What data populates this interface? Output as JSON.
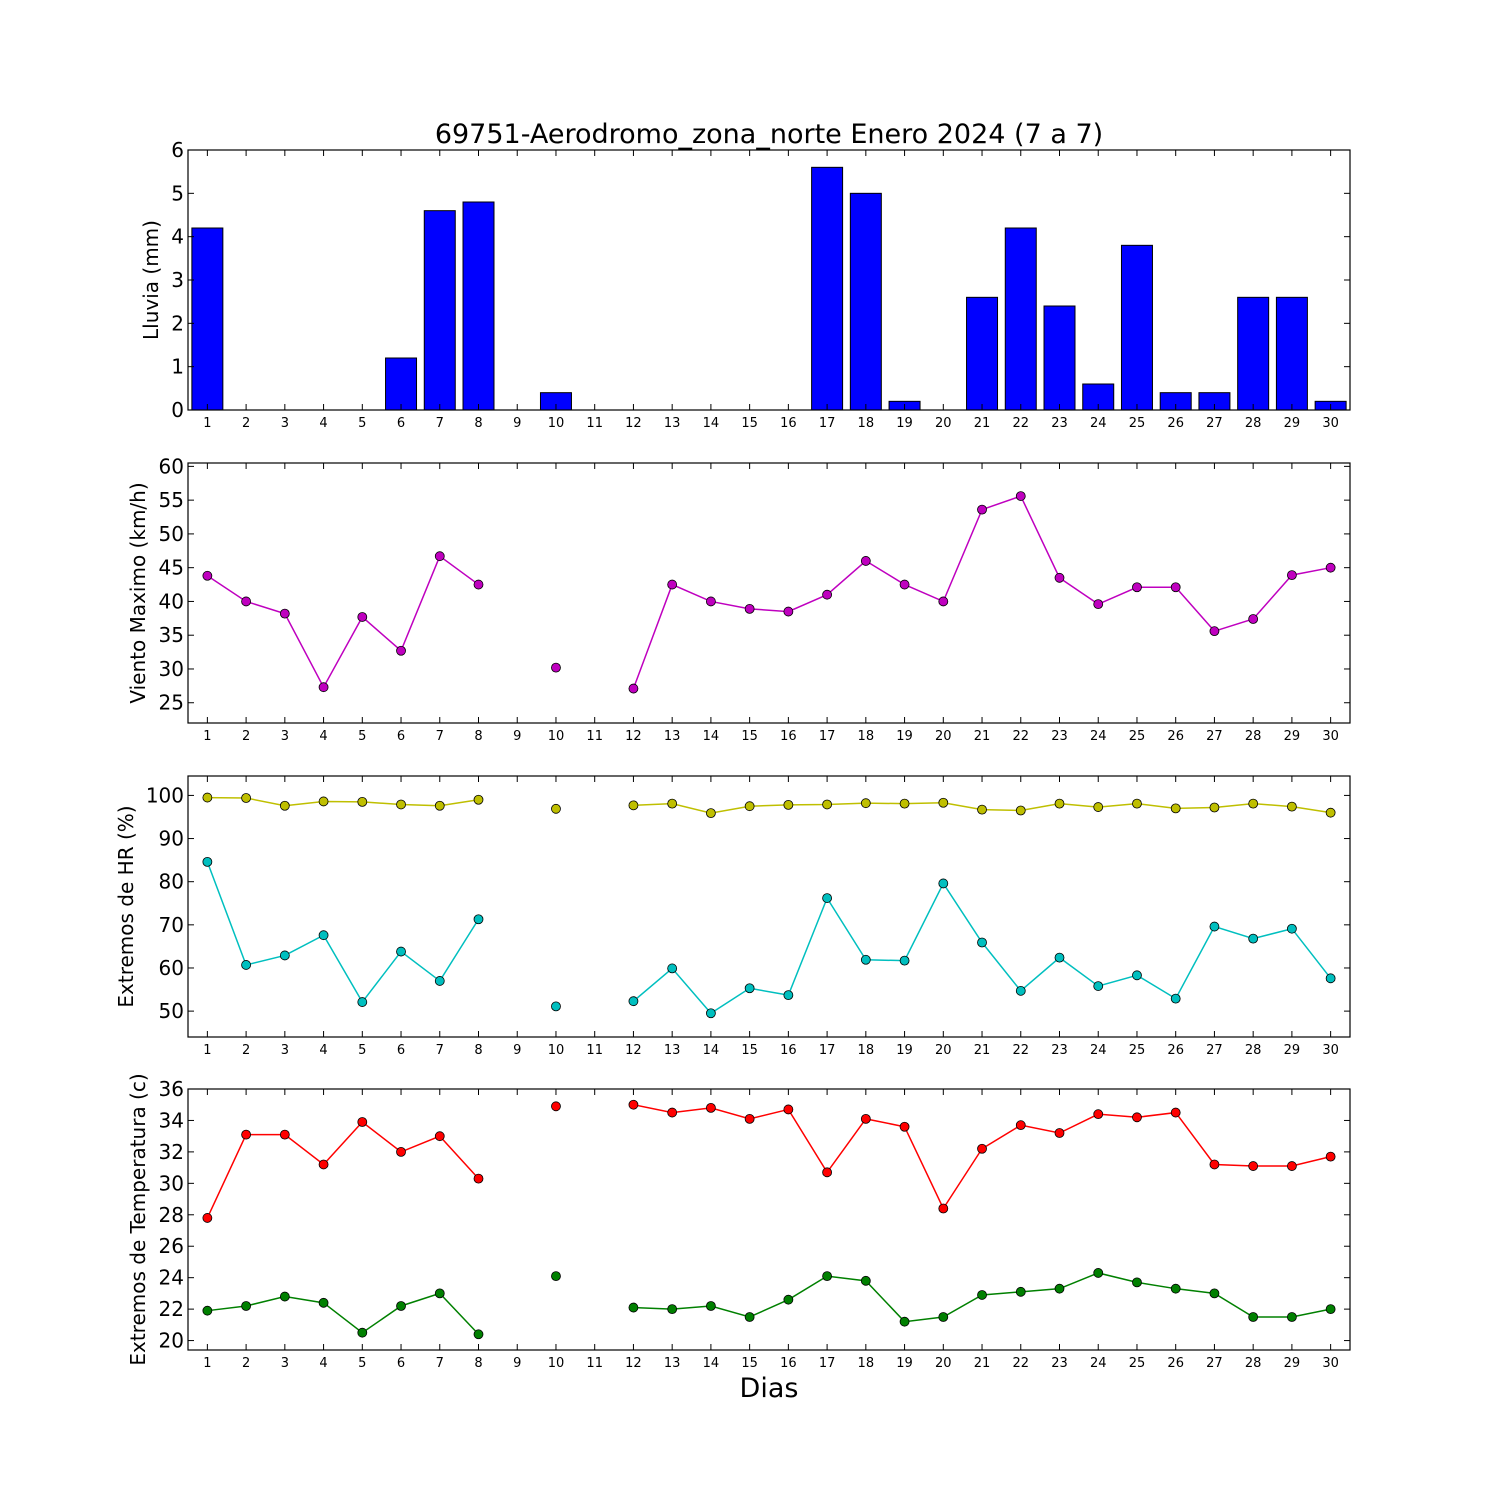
{
  "chart_data": [
    {
      "type": "bar",
      "title": "69751-Aerodromo_zona_norte Enero 2024  (7 a 7)",
      "ylabel": "Lluvia (mm)",
      "xlabel": "",
      "x": [
        1,
        2,
        3,
        4,
        5,
        6,
        7,
        8,
        9,
        10,
        11,
        12,
        13,
        14,
        15,
        16,
        17,
        18,
        19,
        20,
        21,
        22,
        23,
        24,
        25,
        26,
        27,
        28,
        29,
        30
      ],
      "xlim": [
        0.5,
        30.5
      ],
      "ylim": [
        0,
        6
      ],
      "yticks": [
        0,
        1,
        2,
        3,
        4,
        5,
        6
      ],
      "color": "#0000ff",
      "values": [
        4.2,
        0,
        0,
        0,
        0,
        1.2,
        4.6,
        4.8,
        0,
        0.4,
        0,
        0,
        0,
        0,
        0,
        0,
        5.6,
        5.0,
        0.2,
        0,
        2.6,
        4.2,
        2.4,
        0.6,
        3.8,
        0.4,
        0.4,
        2.6,
        2.6,
        0.2
      ]
    },
    {
      "type": "line",
      "title": "",
      "ylabel": "Viento Maximo (km/h)",
      "xlabel": "",
      "x": [
        1,
        2,
        3,
        4,
        5,
        6,
        7,
        8,
        9,
        10,
        11,
        12,
        13,
        14,
        15,
        16,
        17,
        18,
        19,
        20,
        21,
        22,
        23,
        24,
        25,
        26,
        27,
        28,
        29,
        30
      ],
      "xlim": [
        0.5,
        30.5
      ],
      "ylim": [
        22,
        60.5
      ],
      "yticks": [
        25,
        30,
        35,
        40,
        45,
        50,
        55,
        60
      ],
      "series": [
        {
          "color": "#bf00bf",
          "values": [
            43.8,
            40.0,
            38.2,
            27.3,
            37.7,
            32.7,
            46.7,
            42.5,
            null,
            30.2,
            null,
            27.1,
            42.5,
            40.0,
            38.9,
            38.5,
            41.0,
            46.0,
            42.5,
            40.0,
            53.6,
            55.6,
            43.5,
            39.6,
            42.1,
            42.1,
            35.6,
            37.4,
            43.9,
            45.0
          ]
        }
      ]
    },
    {
      "type": "line",
      "title": "",
      "ylabel": "Extremos de HR (%)",
      "xlabel": "",
      "x": [
        1,
        2,
        3,
        4,
        5,
        6,
        7,
        8,
        9,
        10,
        11,
        12,
        13,
        14,
        15,
        16,
        17,
        18,
        19,
        20,
        21,
        22,
        23,
        24,
        25,
        26,
        27,
        28,
        29,
        30
      ],
      "xlim": [
        0.5,
        30.5
      ],
      "ylim": [
        44,
        104.5
      ],
      "yticks": [
        50,
        60,
        70,
        80,
        90,
        100
      ],
      "series": [
        {
          "color": "#bfbf00",
          "values": [
            99.5,
            99.4,
            97.6,
            98.6,
            98.5,
            97.9,
            97.6,
            99.0,
            null,
            96.9,
            null,
            97.7,
            98.1,
            95.9,
            97.5,
            97.8,
            97.9,
            98.2,
            98.1,
            98.3,
            96.7,
            96.5,
            98.1,
            97.3,
            98.1,
            97.0,
            97.2,
            98.1,
            97.4,
            96.0
          ]
        },
        {
          "color": "#00bfbf",
          "values": [
            84.6,
            60.7,
            62.9,
            67.6,
            52.1,
            63.8,
            57.0,
            71.3,
            null,
            51.1,
            null,
            52.3,
            59.9,
            49.5,
            55.3,
            53.7,
            76.2,
            61.9,
            61.7,
            79.6,
            65.9,
            54.7,
            62.4,
            55.8,
            58.3,
            52.9,
            69.6,
            66.8,
            69.1,
            57.6
          ]
        }
      ]
    },
    {
      "type": "line",
      "title": "",
      "ylabel": "Extremos de Temperatura (c)",
      "xlabel": "Dias",
      "x": [
        1,
        2,
        3,
        4,
        5,
        6,
        7,
        8,
        9,
        10,
        11,
        12,
        13,
        14,
        15,
        16,
        17,
        18,
        19,
        20,
        21,
        22,
        23,
        24,
        25,
        26,
        27,
        28,
        29,
        30
      ],
      "xlim": [
        0.5,
        30.5
      ],
      "ylim": [
        19.4,
        36
      ],
      "yticks": [
        20,
        22,
        24,
        26,
        28,
        30,
        32,
        34,
        36
      ],
      "series": [
        {
          "color": "#ff0000",
          "values": [
            27.8,
            33.1,
            33.1,
            31.2,
            33.9,
            32.0,
            33.0,
            30.3,
            null,
            34.9,
            null,
            35.0,
            34.5,
            34.8,
            34.1,
            34.7,
            30.7,
            34.1,
            33.6,
            28.4,
            32.2,
            33.7,
            33.2,
            34.4,
            34.2,
            34.5,
            31.2,
            31.1,
            31.1,
            31.7
          ]
        },
        {
          "color": "#008000",
          "values": [
            21.9,
            22.2,
            22.8,
            22.4,
            20.5,
            22.2,
            23.0,
            20.4,
            null,
            24.1,
            null,
            22.1,
            22.0,
            22.2,
            21.5,
            22.6,
            24.1,
            23.8,
            21.2,
            21.5,
            22.9,
            23.1,
            23.3,
            24.3,
            23.7,
            23.3,
            23.0,
            21.5,
            21.5,
            22.0
          ]
        }
      ]
    }
  ]
}
